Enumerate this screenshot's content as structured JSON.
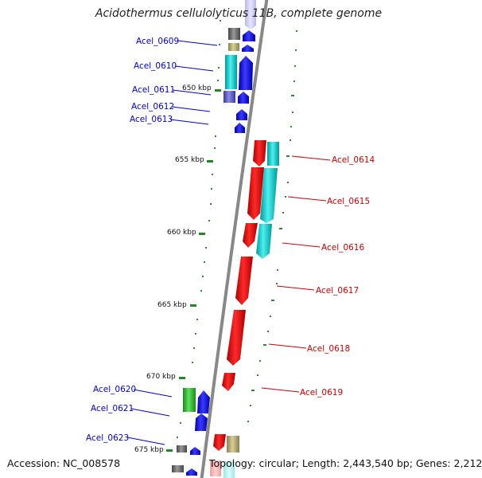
{
  "header": {
    "title": "Acidothermus cellulolyticus 11B, complete genome"
  },
  "footer": {
    "accession": "Accession: NC_008578",
    "topology": "Topology: circular; Length: 2,443,540 bp; Genes: 2,212"
  },
  "scale": {
    "ticks": [
      "650 kbp",
      "655 kbp",
      "660 kbp",
      "665 kbp",
      "670 kbp",
      "675 kbp"
    ]
  },
  "colors": {
    "forward_label": "#0000cc",
    "reverse_label": "#cc0000",
    "backbone": "#888888",
    "tick": "#228822"
  },
  "genes_left": [
    {
      "label": "Acel_0609",
      "color": "#0000cc"
    },
    {
      "label": "Acel_0610",
      "color": "#0000cc"
    },
    {
      "label": "Acel_0611",
      "color": "#0000cc"
    },
    {
      "label": "Acel_0612",
      "color": "#0000cc"
    },
    {
      "label": "Acel_0613",
      "color": "#0000cc"
    },
    {
      "label": "Acel_0620",
      "color": "#0000cc"
    },
    {
      "label": "Acel_0621",
      "color": "#0000cc"
    },
    {
      "label": "Acel_0623",
      "color": "#0000cc"
    }
  ],
  "genes_right": [
    {
      "label": "Acel_0614",
      "color": "#cc0000"
    },
    {
      "label": "Acel_0615",
      "color": "#cc0000"
    },
    {
      "label": "Acel_0616",
      "color": "#cc0000"
    },
    {
      "label": "Acel_0617",
      "color": "#cc0000"
    },
    {
      "label": "Acel_0618",
      "color": "#cc0000"
    },
    {
      "label": "Acel_0619",
      "color": "#cc0000"
    }
  ]
}
